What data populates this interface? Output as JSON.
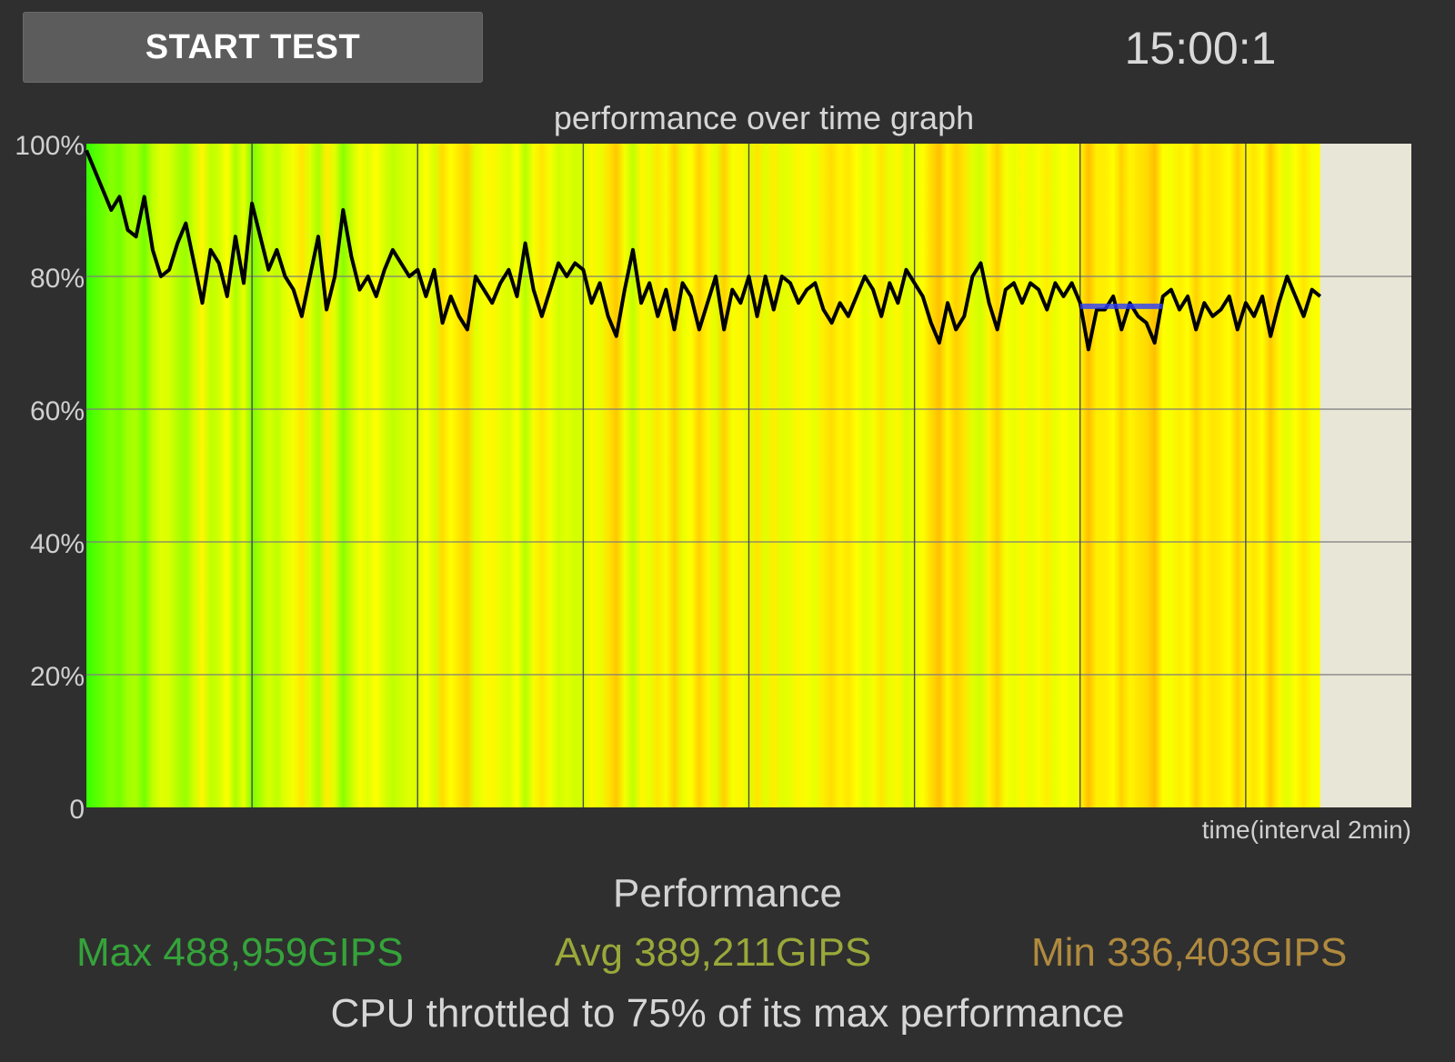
{
  "toolbar": {
    "start_button_label": "START TEST",
    "timer_text": "15:00:1"
  },
  "colors": {
    "background": "#2f2f2f",
    "plot_background": "#e7e6d7",
    "max_color": "#35a33a",
    "avg_color": "#9aa83a",
    "min_color": "#b08a3e",
    "line_color": "#000000",
    "marker_color": "#2a3cff"
  },
  "chart_data": {
    "type": "area",
    "title": "performance over time graph",
    "xlabel": "time(interval 2min)",
    "ylabel": "",
    "ylim": [
      0,
      100
    ],
    "yticks": [
      "0",
      "20%",
      "40%",
      "60%",
      "80%",
      "100%"
    ],
    "x_unit": "minutes",
    "xlim": [
      0,
      16
    ],
    "x_gridlines": [
      2,
      4,
      6,
      8,
      10,
      12,
      14
    ],
    "grid": true,
    "background_fill": "vertical color bands per sample (green = high, yellow/orange = lower)",
    "series": [
      {
        "x": [
          0,
          0.1,
          0.2,
          0.3,
          0.4,
          0.5,
          0.6,
          0.7,
          0.8,
          0.9,
          1.0,
          1.1,
          1.2,
          1.3,
          1.4,
          1.5,
          1.6,
          1.7,
          1.8,
          1.9,
          2.0,
          2.1,
          2.2,
          2.3,
          2.4,
          2.5,
          2.6,
          2.7,
          2.8,
          2.9,
          3.0,
          3.1,
          3.2,
          3.3,
          3.4,
          3.5,
          3.6,
          3.7,
          3.8,
          3.9,
          4.0,
          4.1,
          4.2,
          4.3,
          4.4,
          4.5,
          4.6,
          4.7,
          4.8,
          4.9,
          5.0,
          5.1,
          5.2,
          5.3,
          5.4,
          5.5,
          5.6,
          5.7,
          5.8,
          5.9,
          6.0,
          6.1,
          6.2,
          6.3,
          6.4,
          6.5,
          6.6,
          6.7,
          6.8,
          6.9,
          7.0,
          7.1,
          7.2,
          7.3,
          7.4,
          7.5,
          7.6,
          7.7,
          7.8,
          7.9,
          8.0,
          8.1,
          8.2,
          8.3,
          8.4,
          8.5,
          8.6,
          8.7,
          8.8,
          8.9,
          9.0,
          9.1,
          9.2,
          9.3,
          9.4,
          9.5,
          9.6,
          9.7,
          9.8,
          9.9,
          10.0,
          10.1,
          10.2,
          10.3,
          10.4,
          10.5,
          10.6,
          10.7,
          10.8,
          10.9,
          11.0,
          11.1,
          11.2,
          11.3,
          11.4,
          11.5,
          11.6,
          11.7,
          11.8,
          11.9,
          12.0,
          12.1,
          12.2,
          12.3,
          12.4,
          12.5,
          12.6,
          12.7,
          12.8,
          12.9,
          13.0,
          13.1,
          13.2,
          13.3,
          13.4,
          13.5,
          13.6,
          13.7,
          13.8,
          13.9,
          14.0,
          14.1,
          14.2,
          14.3,
          14.4,
          14.5,
          14.6,
          14.7,
          14.8,
          14.9
        ],
        "values": [
          99,
          96,
          93,
          90,
          92,
          87,
          86,
          92,
          84,
          80,
          81,
          85,
          88,
          82,
          76,
          84,
          82,
          77,
          86,
          79,
          91,
          86,
          81,
          84,
          80,
          78,
          74,
          80,
          86,
          75,
          80,
          90,
          83,
          78,
          80,
          77,
          81,
          84,
          82,
          80,
          81,
          77,
          81,
          73,
          77,
          74,
          72,
          80,
          78,
          76,
          79,
          81,
          77,
          85,
          78,
          74,
          78,
          82,
          80,
          82,
          81,
          76,
          79,
          74,
          71,
          78,
          84,
          76,
          79,
          74,
          78,
          72,
          79,
          77,
          72,
          76,
          80,
          72,
          78,
          76,
          80,
          74,
          80,
          75,
          80,
          79,
          76,
          78,
          79,
          75,
          73,
          76,
          74,
          77,
          80,
          78,
          74,
          79,
          76,
          81,
          79,
          77,
          73,
          70,
          76,
          72,
          74,
          80,
          82,
          76,
          72,
          78,
          79,
          76,
          79,
          78,
          75,
          79,
          77,
          79,
          76,
          69,
          75,
          75,
          77,
          72,
          76,
          74,
          73,
          70,
          77,
          78,
          75,
          77,
          72,
          76,
          74,
          75,
          77,
          72,
          76,
          74,
          77,
          71,
          76,
          80,
          77,
          74,
          78,
          77
        ]
      }
    ],
    "marker_segment": {
      "x_start": 12.0,
      "x_end": 13.0,
      "value": 75.5,
      "color": "#2a3cff"
    }
  },
  "results": {
    "heading": "Performance",
    "max_text": "Max 488,959GIPS",
    "avg_text": "Avg 389,211GIPS",
    "min_text": "Min 336,403GIPS",
    "summary": "CPU throttled to 75% of its max performance"
  }
}
